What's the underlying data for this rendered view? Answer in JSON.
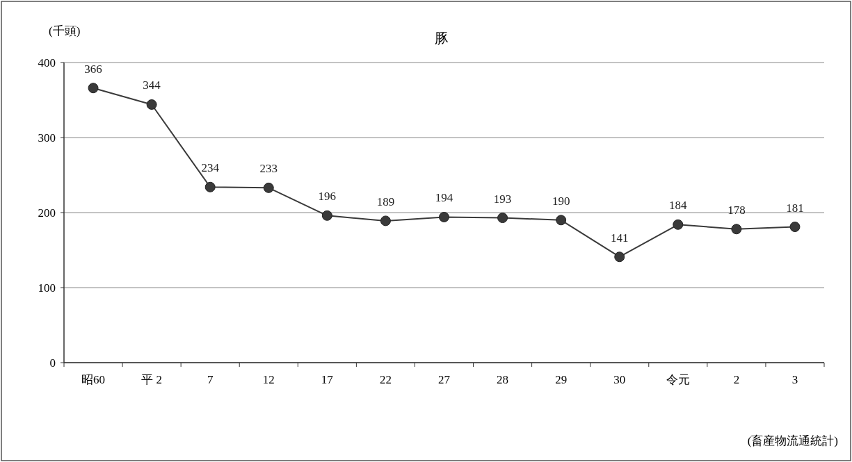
{
  "chart_data": {
    "type": "line",
    "title": "豚",
    "ylabel": "(千頭)",
    "categories": [
      "昭60",
      "平 2",
      "7",
      "12",
      "17",
      "22",
      "27",
      "28",
      "29",
      "30",
      "令元",
      "2",
      "3"
    ],
    "series": [
      {
        "color": "#3a3a3a",
        "values": [
          366,
          344,
          234,
          233,
          196,
          189,
          194,
          193,
          190,
          141,
          184,
          178,
          181
        ]
      }
    ],
    "ylim": [
      0,
      400
    ],
    "yticks": [
      0,
      100,
      200,
      300,
      400
    ],
    "grid": "y",
    "marker": "circle",
    "line_style": "solid",
    "data_labels": true,
    "annotations": [
      "(畜産物流通統計)"
    ]
  }
}
